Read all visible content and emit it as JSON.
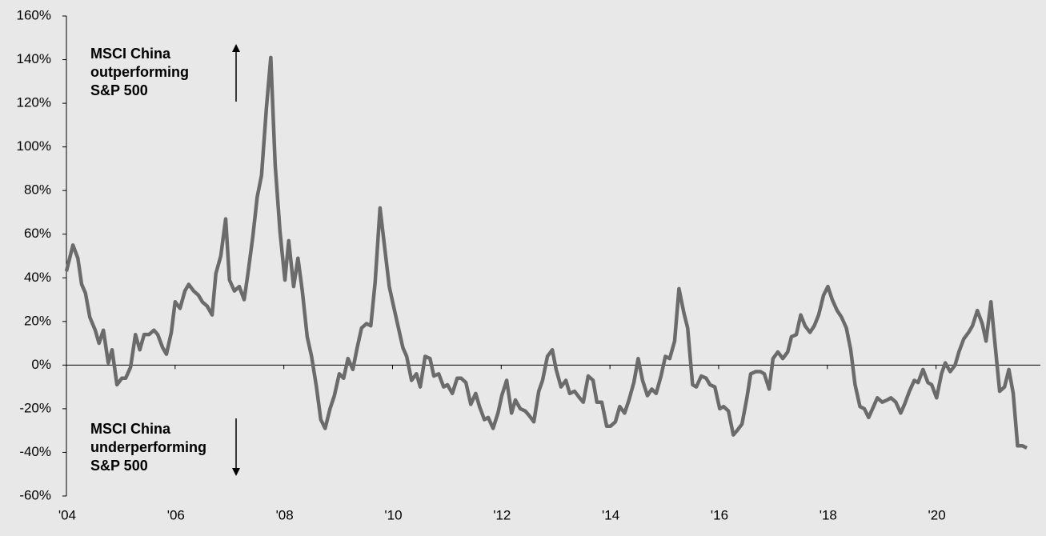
{
  "chart_data": {
    "type": "line",
    "annotations": [
      {
        "lines": [
          "MSCI China",
          "outperforming",
          "S&P 500"
        ]
      },
      {
        "lines": [
          "MSCI China",
          "underperforming",
          "S&P 500"
        ]
      }
    ],
    "xlim": [
      2004,
      2021.92
    ],
    "xticks": [
      {
        "value": 2004,
        "label": "'04"
      },
      {
        "value": 2006,
        "label": "'06"
      },
      {
        "value": 2008,
        "label": "'08"
      },
      {
        "value": 2010,
        "label": "'10"
      },
      {
        "value": 2012,
        "label": "'12"
      },
      {
        "value": 2014,
        "label": "'14"
      },
      {
        "value": 2016,
        "label": "'16"
      },
      {
        "value": 2018,
        "label": "'18"
      },
      {
        "value": 2020,
        "label": "'20"
      }
    ],
    "ylim": [
      -60,
      160
    ],
    "yticks": [
      {
        "value": -60,
        "label": "-60%"
      },
      {
        "value": -40,
        "label": "-40%"
      },
      {
        "value": -20,
        "label": "-20%"
      },
      {
        "value": 0,
        "label": "0%"
      },
      {
        "value": 20,
        "label": "20%"
      },
      {
        "value": 40,
        "label": "40%"
      },
      {
        "value": 60,
        "label": "60%"
      },
      {
        "value": 80,
        "label": "80%"
      },
      {
        "value": 100,
        "label": "100%"
      },
      {
        "value": 120,
        "label": "120%"
      },
      {
        "value": 140,
        "label": "140%"
      },
      {
        "value": 160,
        "label": "160%"
      }
    ],
    "grid": false,
    "x": [
      2004.0,
      2004.12,
      2004.21,
      2004.28,
      2004.35,
      2004.43,
      2004.53,
      2004.6,
      2004.68,
      2004.77,
      2004.84,
      2004.93,
      2005.02,
      2005.09,
      2005.18,
      2005.27,
      2005.35,
      2005.43,
      2005.52,
      2005.61,
      2005.68,
      2005.77,
      2005.84,
      2005.93,
      2006.0,
      2006.09,
      2006.18,
      2006.25,
      2006.34,
      2006.43,
      2006.5,
      2006.59,
      2006.68,
      2006.75,
      2006.84,
      2006.93,
      2007.0,
      2007.09,
      2007.18,
      2007.27,
      2007.34,
      2007.43,
      2007.51,
      2007.59,
      2007.68,
      2007.76,
      2007.84,
      2007.93,
      2008.02,
      2008.09,
      2008.18,
      2008.26,
      2008.34,
      2008.43,
      2008.51,
      2008.6,
      2008.68,
      2008.76,
      2008.85,
      2008.93,
      2009.02,
      2009.1,
      2009.18,
      2009.27,
      2009.35,
      2009.43,
      2009.52,
      2009.6,
      2009.68,
      2009.77,
      2009.85,
      2009.94,
      2010.01,
      2010.1,
      2010.19,
      2010.26,
      2010.35,
      2010.44,
      2010.51,
      2010.6,
      2010.69,
      2010.76,
      2010.85,
      2010.94,
      2011.01,
      2011.1,
      2011.19,
      2011.26,
      2011.35,
      2011.44,
      2011.53,
      2011.6,
      2011.69,
      2011.76,
      2011.85,
      2011.94,
      2012.01,
      2012.1,
      2012.19,
      2012.26,
      2012.35,
      2012.44,
      2012.51,
      2012.6,
      2012.69,
      2012.76,
      2012.85,
      2012.94,
      2013.01,
      2013.1,
      2013.19,
      2013.26,
      2013.35,
      2013.44,
      2013.51,
      2013.6,
      2013.69,
      2013.76,
      2013.85,
      2013.94,
      2014.01,
      2014.1,
      2014.18,
      2014.27,
      2014.35,
      2014.44,
      2014.52,
      2014.6,
      2014.69,
      2014.77,
      2014.85,
      2014.94,
      2015.02,
      2015.1,
      2015.19,
      2015.27,
      2015.36,
      2015.43,
      2015.52,
      2015.59,
      2015.68,
      2015.77,
      2015.84,
      2015.93,
      2016.02,
      2016.09,
      2016.18,
      2016.27,
      2016.34,
      2016.43,
      2016.52,
      2016.59,
      2016.68,
      2016.77,
      2016.84,
      2016.93,
      2017.0,
      2017.09,
      2017.18,
      2017.27,
      2017.34,
      2017.43,
      2017.51,
      2017.59,
      2017.68,
      2017.76,
      2017.84,
      2017.93,
      2018.01,
      2018.09,
      2018.18,
      2018.26,
      2018.35,
      2018.43,
      2018.51,
      2018.6,
      2018.68,
      2018.76,
      2018.85,
      2018.92,
      2019.01,
      2019.1,
      2019.17,
      2019.26,
      2019.35,
      2019.42,
      2019.51,
      2019.6,
      2019.67,
      2019.76,
      2019.85,
      2019.92,
      2020.01,
      2020.1,
      2020.17,
      2020.26,
      2020.35,
      2020.42,
      2020.51,
      2020.6,
      2020.67,
      2020.76,
      2020.85,
      2020.92,
      2021.01,
      2021.08,
      2021.17,
      2021.26,
      2021.34,
      2021.42,
      2021.5,
      2021.59,
      2021.67
    ],
    "series": [
      {
        "color": "#6b6b6b",
        "values": [
          43,
          55,
          49,
          37,
          33,
          22,
          16,
          10,
          16,
          1,
          7,
          -9,
          -6,
          -6,
          -1,
          14,
          7,
          14,
          14,
          16,
          14,
          8,
          5,
          15,
          29,
          26,
          34,
          37,
          34,
          32,
          29,
          27,
          23,
          42,
          50,
          67,
          39,
          34,
          36,
          30,
          42,
          59,
          77,
          87,
          118,
          141,
          92,
          61,
          39,
          57,
          36,
          49,
          34,
          13,
          4,
          -10,
          -25,
          -29,
          -20,
          -14,
          -4,
          -6,
          3,
          -2,
          8,
          17,
          19,
          18,
          38,
          72,
          55,
          36,
          28,
          18,
          8,
          4,
          -7,
          -4,
          -10,
          4,
          3,
          -5,
          -4,
          -10,
          -9,
          -13,
          -6,
          -6,
          -8,
          -18,
          -13,
          -19,
          -25,
          -24,
          -29,
          -22,
          -14,
          -7,
          -22,
          -16,
          -20,
          -21,
          -23,
          -26,
          -12,
          -7,
          4,
          7,
          -2,
          -10,
          -7,
          -13,
          -12,
          -15,
          -17,
          -5,
          -7,
          -17,
          -17,
          -28,
          -28,
          -26,
          -19,
          -22,
          -16,
          -8,
          3,
          -7,
          -14,
          -11,
          -13,
          -5,
          4,
          3,
          11,
          35,
          24,
          17,
          -9,
          -10,
          -5,
          -6,
          -9,
          -10,
          -20,
          -19,
          -21,
          -32,
          -30,
          -27,
          -15,
          -4,
          -3,
          -3,
          -4,
          -11,
          3,
          6,
          3,
          6,
          13,
          14,
          23,
          18,
          15,
          18,
          23,
          32,
          36,
          30,
          25,
          22,
          17,
          7,
          -9,
          -19,
          -20,
          -24,
          -19,
          -15,
          -17,
          -16,
          -15,
          -17,
          -22,
          -18,
          -12,
          -7,
          -8,
          -2,
          -8,
          -9,
          -15,
          -4,
          1,
          -3,
          0,
          6,
          12,
          15,
          18,
          25,
          19,
          11,
          29,
          11,
          -12,
          -10,
          -2,
          -13,
          -37,
          -37,
          -38
        ]
      }
    ]
  }
}
